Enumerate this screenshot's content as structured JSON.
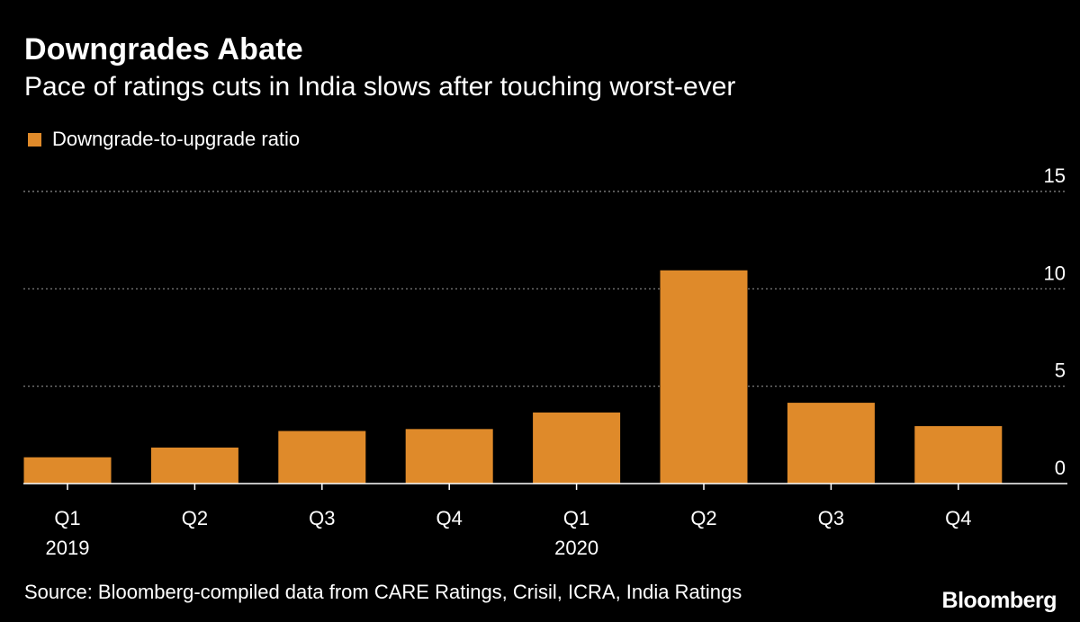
{
  "header": {
    "title": "Downgrades Abate",
    "subtitle": "Pace of ratings cuts in India slows after touching worst-ever"
  },
  "colors": {
    "background": "#000000",
    "bar": "#DF8A2A",
    "text": "#FFFFFF",
    "gridline": "#8C8C8C"
  },
  "footer": {
    "source": "Source: Bloomberg-compiled data from CARE Ratings, Crisil, ICRA, India Ratings",
    "logo": "Bloomberg"
  },
  "chart_data": {
    "type": "bar",
    "title": "Downgrades Abate",
    "subtitle": "Pace of ratings cuts in India slows after touching worst-ever",
    "legend": [
      "Downgrade-to-upgrade ratio"
    ],
    "legend_position": "top-left",
    "categories": [
      "Q1",
      "Q2",
      "Q3",
      "Q4",
      "Q1",
      "Q2",
      "Q3",
      "Q4"
    ],
    "year_labels": [
      {
        "category_index": 0,
        "label": "2019"
      },
      {
        "category_index": 4,
        "label": "2020"
      }
    ],
    "series": [
      {
        "name": "Downgrade-to-upgrade ratio",
        "values": [
          1.35,
          1.85,
          2.7,
          2.8,
          3.65,
          10.95,
          4.15,
          2.95
        ]
      }
    ],
    "y_ticks": [
      0,
      5,
      10,
      15
    ],
    "y_tick_labels": [
      "0",
      "5",
      "10",
      "15"
    ],
    "ylim": [
      0,
      15
    ],
    "y_axis_side": "right",
    "grid": true,
    "xlabel": "",
    "ylabel": ""
  }
}
